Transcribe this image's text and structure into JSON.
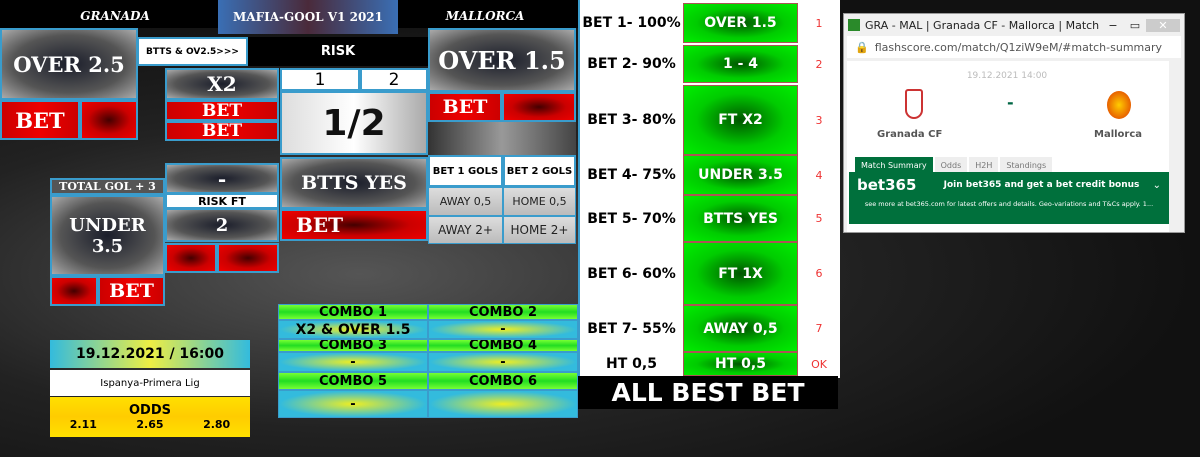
{
  "header": {
    "home_team": "GRANADA",
    "app_title": "MAFIA-GOOL V1 2021",
    "away_team": "MALLORCA"
  },
  "left": {
    "over25": "OVER 2.5",
    "bet": "BET",
    "btts_ov25": "BTTS & OV2.5>>>",
    "risk": "RISK",
    "x2": "X2",
    "risk_1": "1",
    "risk_2": "2",
    "risk_value": "1/2",
    "over15": "OVER 1.5",
    "bet1_gols": "BET 1 GOLS",
    "bet2_gols": "BET 2 GOLS",
    "away05": "AWAY 0,5",
    "home05": "HOME 0,5",
    "away2": "AWAY 2+",
    "home2": "HOME 2+",
    "btts_yes": "BTTS YES",
    "dash": "-",
    "risk_ft": "RISK FT",
    "risk_ft_value": "2",
    "total_gol": "TOTAL GOL  + 3",
    "under35": "UNDER 3.5"
  },
  "combos": [
    {
      "label": "COMBO 1",
      "value": "X2 & OVER 1.5"
    },
    {
      "label": "COMBO 2",
      "value": "-"
    },
    {
      "label": "COMBO 3",
      "value": "-"
    },
    {
      "label": "COMBO 4",
      "value": "-"
    },
    {
      "label": "COMBO 5",
      "value": "-"
    },
    {
      "label": "COMBO 6",
      "value": ""
    }
  ],
  "match": {
    "datetime": "19.12.2021 / 16:00",
    "league": "Ispanya-Primera Lig",
    "odds_label": "ODDS",
    "odds": [
      "2.11",
      "2.65",
      "2.80"
    ]
  },
  "bets": [
    {
      "label": "BET 1- 100%",
      "pick": "OVER 1.5",
      "n": "1"
    },
    {
      "label": "BET 2- 90%",
      "pick": "1 - 4",
      "n": "2"
    },
    {
      "label": "BET 3- 80%",
      "pick": "FT X2",
      "n": "3"
    },
    {
      "label": "BET 4- 75%",
      "pick": "UNDER 3.5",
      "n": "4"
    },
    {
      "label": "BET 5- 70%",
      "pick": "BTTS YES",
      "n": "5"
    },
    {
      "label": "BET 6- 60%",
      "pick": "FT 1X",
      "n": "6"
    },
    {
      "label": "BET 7- 55%",
      "pick": "AWAY 0,5",
      "n": "7"
    },
    {
      "label": "HT 0,5",
      "pick": "HT 0,5",
      "n": "OK"
    }
  ],
  "all_best_bet": "ALL  BEST BET",
  "browser": {
    "title": "GRA - MAL | Granada CF - Mallorca | Match S...",
    "url": "flashscore.com/match/Q1ziW9eM/#match-summary",
    "date": "19.12.2021 14:00",
    "score": "-",
    "home": "Granada CF",
    "away": "Mallorca",
    "tabs": [
      "Match Summary",
      "Odds",
      "H2H",
      "Standings"
    ],
    "ad_logo": "bet365",
    "ad_title": "Join bet365 and get a bet credit bonus",
    "ad_sub": "see more at bet365.com for latest offers and details. Geo-variations and T&Cs apply. 1...",
    "accent": "#00703c"
  }
}
